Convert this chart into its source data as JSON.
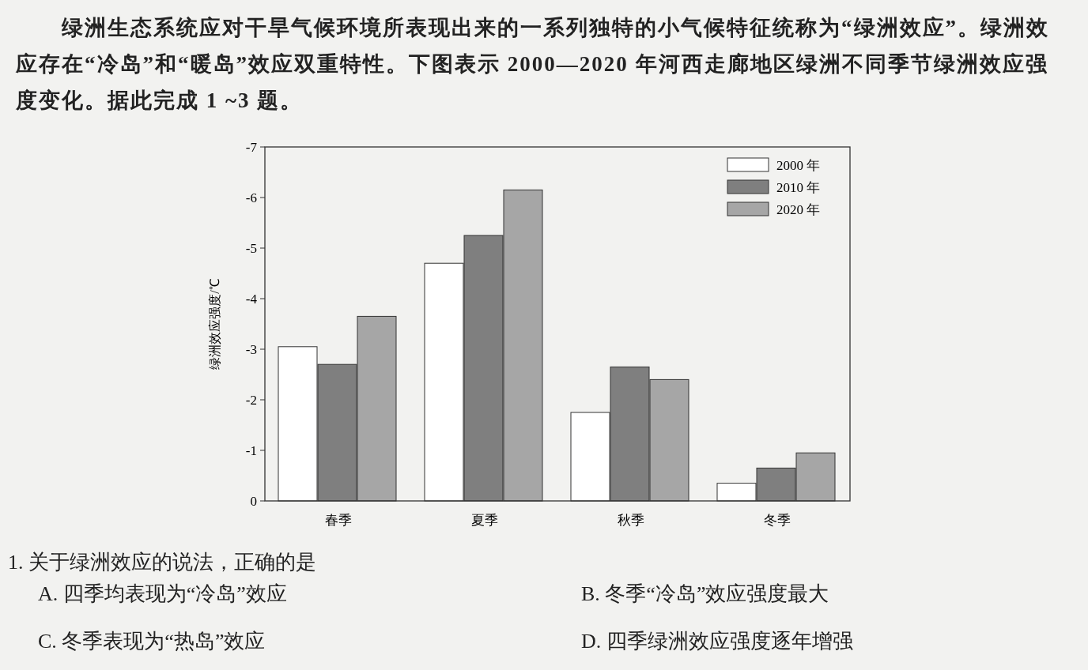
{
  "chart_data": {
    "type": "bar",
    "title": "绿洲生态系统应对干旱气候环境所表现出来的一系列独特的小气候特征统称为“绿洲效应”。绿洲效应存在“冷岛”和“暖岛”效应双重特性。下图表示 2000—2020 年河西走廊地区绿洲不同季节绿洲效应强度变化。据此完成 1 ~3 题。",
    "ylabel": "绿洲效应强度/℃",
    "categories": [
      "春季",
      "夏季",
      "秋季",
      "冬季"
    ],
    "series": [
      {
        "name": "2000 年",
        "color": "#ffffff",
        "values": [
          -3.05,
          -4.7,
          -1.75,
          -0.35
        ]
      },
      {
        "name": "2010 年",
        "color": "#7f7f7f",
        "values": [
          -2.7,
          -5.25,
          -2.65,
          -0.65
        ]
      },
      {
        "name": "2020 年",
        "color": "#a6a6a6",
        "values": [
          -3.65,
          -6.15,
          -2.4,
          -0.95
        ]
      }
    ],
    "ylim": [
      0,
      -7
    ],
    "yticks": [
      -7,
      -6,
      -5,
      -4,
      -3,
      -2,
      -1,
      0
    ],
    "legend": "top right",
    "grid": false,
    "annotations": [
      "1. 关于绿洲效应的说法，正确的是",
      "A. 四季均表现为“冷岛”效应",
      "B. 冬季“冷岛”效应强度最大",
      "C. 冬季表现为“热岛”效应",
      "D. 四季绿洲效应强度逐年增强"
    ]
  }
}
